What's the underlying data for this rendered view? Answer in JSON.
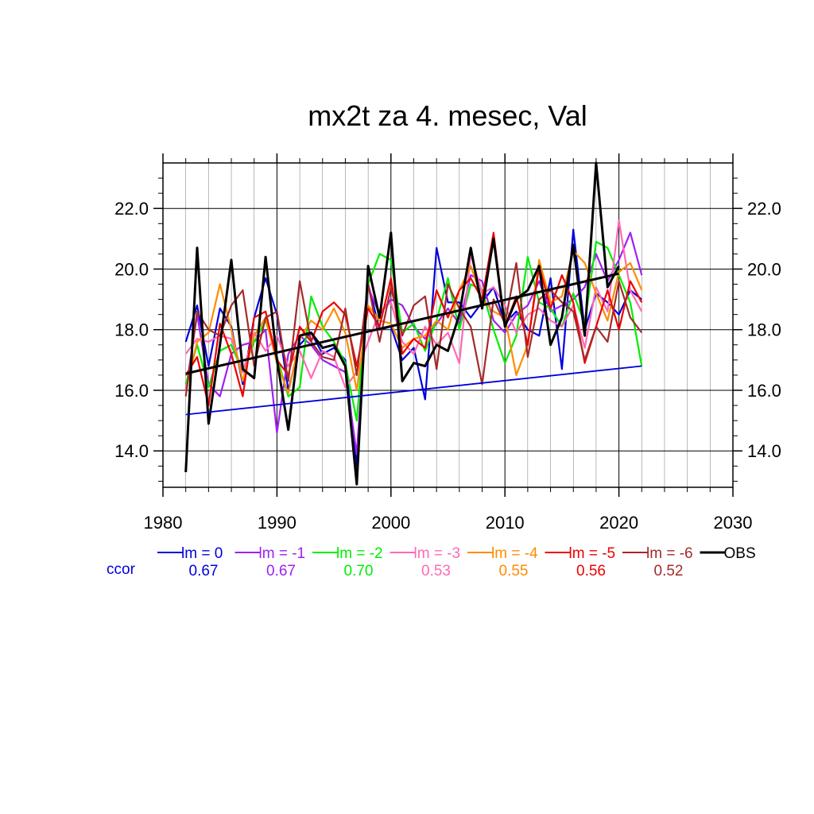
{
  "chart_data": {
    "type": "line",
    "title": "mx2t za 4. mesec, Val",
    "xlim": [
      1980,
      2030
    ],
    "ylim": [
      12.8,
      23.5
    ],
    "x_ticks": [
      "1980",
      "1990",
      "2000",
      "2010",
      "2020",
      "2030"
    ],
    "y_ticks": [
      "14.0",
      "16.0",
      "18.0",
      "20.0",
      "22.0"
    ],
    "grid": true,
    "ccor_label": "ccor",
    "x": [
      1982,
      1983,
      1984,
      1985,
      1986,
      1987,
      1988,
      1989,
      1990,
      1991,
      1992,
      1993,
      1994,
      1995,
      1996,
      1997,
      1998,
      1999,
      2000,
      2001,
      2002,
      2003,
      2004,
      2005,
      2006,
      2007,
      2008,
      2009,
      2010,
      2011,
      2012,
      2013,
      2014,
      2015,
      2016,
      2017,
      2018,
      2019,
      2020,
      2021,
      2022
    ],
    "series": [
      {
        "name": "lm = 0",
        "color": "#0000dd",
        "ccor": "0.67",
        "values": [
          17.6,
          18.8,
          16.8,
          18.7,
          18.1,
          16.2,
          18.4,
          19.7,
          18.5,
          16.0,
          17.5,
          17.9,
          17.2,
          17.4,
          17.0,
          13.5,
          19.5,
          18.0,
          18.1,
          17.0,
          17.4,
          15.7,
          20.7,
          18.9,
          18.9,
          18.4,
          18.9,
          19.4,
          18.2,
          18.6,
          18.0,
          17.8,
          19.7,
          16.7,
          21.3,
          18.0,
          19.2,
          18.9,
          18.5,
          19.3,
          19.0
        ]
      },
      {
        "name": "lm = -1",
        "color": "#a020f0",
        "ccor": "0.67",
        "values": [
          16.0,
          18.5,
          16.2,
          15.8,
          17.2,
          17.5,
          17.6,
          18.0,
          14.6,
          17.2,
          17.8,
          17.5,
          17.0,
          16.8,
          16.6,
          13.9,
          19.4,
          18.5,
          19.0,
          18.8,
          18.1,
          17.7,
          18.2,
          18.7,
          18.2,
          19.8,
          19.6,
          18.3,
          17.9,
          18.5,
          18.8,
          19.6,
          18.6,
          18.8,
          19.0,
          19.4,
          20.5,
          19.6,
          20.3,
          21.2,
          19.8
        ]
      },
      {
        "name": "lm = -2",
        "color": "#00ee00",
        "ccor": "0.70",
        "values": [
          16.2,
          17.5,
          16.1,
          17.3,
          17.5,
          16.6,
          17.6,
          18.3,
          17.1,
          15.8,
          16.1,
          19.1,
          18.1,
          17.6,
          16.9,
          15.0,
          19.5,
          20.5,
          20.3,
          17.9,
          18.2,
          17.3,
          18.3,
          19.7,
          18.0,
          19.5,
          19.3,
          18.0,
          16.9,
          17.8,
          20.4,
          18.9,
          18.7,
          18.1,
          19.2,
          18.2,
          20.9,
          20.7,
          19.8,
          18.9,
          16.8
        ]
      },
      {
        "name": "lm = -3",
        "color": "#ff69b4",
        "ccor": "0.53",
        "values": [
          17.2,
          17.7,
          17.6,
          17.8,
          17.7,
          16.6,
          17.9,
          17.3,
          17.8,
          16.8,
          17.3,
          16.4,
          17.3,
          17.1,
          16.1,
          16.6,
          17.6,
          18.6,
          18.9,
          17.6,
          17.2,
          18.1,
          17.5,
          17.9,
          16.9,
          20.5,
          19.2,
          19.4,
          18.8,
          17.9,
          18.5,
          18.7,
          18.3,
          18.1,
          18.8,
          17.4,
          19.4,
          18.6,
          21.6,
          19.3,
          18.6
        ]
      },
      {
        "name": "lm = -4",
        "color": "#ff8c00",
        "ccor": "0.55",
        "values": [
          16.0,
          17.6,
          17.9,
          19.5,
          18.0,
          16.3,
          17.8,
          18.4,
          16.9,
          15.9,
          17.7,
          18.3,
          18.0,
          18.7,
          17.9,
          16.0,
          18.8,
          18.3,
          18.2,
          17.4,
          17.7,
          17.8,
          18.3,
          18.0,
          19.3,
          20.1,
          19.0,
          18.6,
          18.4,
          16.5,
          17.5,
          20.3,
          18.9,
          19.1,
          20.6,
          20.2,
          19.2,
          18.3,
          19.9,
          20.2,
          19.3
        ]
      },
      {
        "name": "lm = -5",
        "color": "#ee0000",
        "ccor": "0.56",
        "values": [
          16.5,
          17.1,
          15.5,
          18.2,
          17.2,
          15.8,
          18.4,
          18.6,
          17.0,
          16.5,
          18.1,
          17.6,
          18.6,
          18.9,
          18.5,
          16.8,
          18.7,
          18.1,
          19.7,
          17.2,
          17.7,
          17.4,
          19.3,
          18.4,
          19.3,
          19.7,
          19.0,
          21.2,
          18.1,
          19.1,
          17.5,
          20.1,
          18.7,
          19.8,
          18.9,
          16.9,
          18.1,
          19.3,
          18.0,
          19.6,
          18.9
        ]
      },
      {
        "name": "lm = -6",
        "color": "#a52a2a",
        "ccor": "0.52",
        "values": [
          15.8,
          18.6,
          18.0,
          17.8,
          18.8,
          19.3,
          16.8,
          18.4,
          18.6,
          16.3,
          19.6,
          17.6,
          17.1,
          17.0,
          18.7,
          16.5,
          19.5,
          17.6,
          19.4,
          17.8,
          18.8,
          19.1,
          16.7,
          19.5,
          18.7,
          18.1,
          16.2,
          19.0,
          18.2,
          20.2,
          17.1,
          19.0,
          19.3,
          18.9,
          18.6,
          17.0,
          18.1,
          17.6,
          19.6,
          18.4,
          17.9
        ]
      },
      {
        "name": "OBS",
        "color": "#000000",
        "ccor": "",
        "values": [
          13.3,
          20.7,
          14.9,
          17.5,
          20.3,
          16.7,
          16.4,
          20.4,
          17.0,
          14.7,
          17.8,
          17.9,
          17.4,
          17.5,
          16.8,
          12.9,
          20.1,
          18.4,
          21.2,
          16.3,
          16.9,
          16.8,
          17.5,
          17.3,
          18.5,
          20.7,
          18.7,
          21.0,
          18.1,
          19.0,
          19.3,
          20.1,
          17.5,
          18.4,
          20.8,
          17.8,
          23.5,
          19.4,
          20.1,
          null,
          null
        ]
      }
    ],
    "trend_lines": [
      {
        "series": "OBS",
        "color": "#000000",
        "x": [
          1982,
          2020
        ],
        "y": [
          16.55,
          19.85
        ]
      },
      {
        "series": "lm = 0",
        "color": "#0000dd",
        "x": [
          1982,
          2022
        ],
        "y": [
          15.2,
          16.8
        ]
      }
    ]
  }
}
